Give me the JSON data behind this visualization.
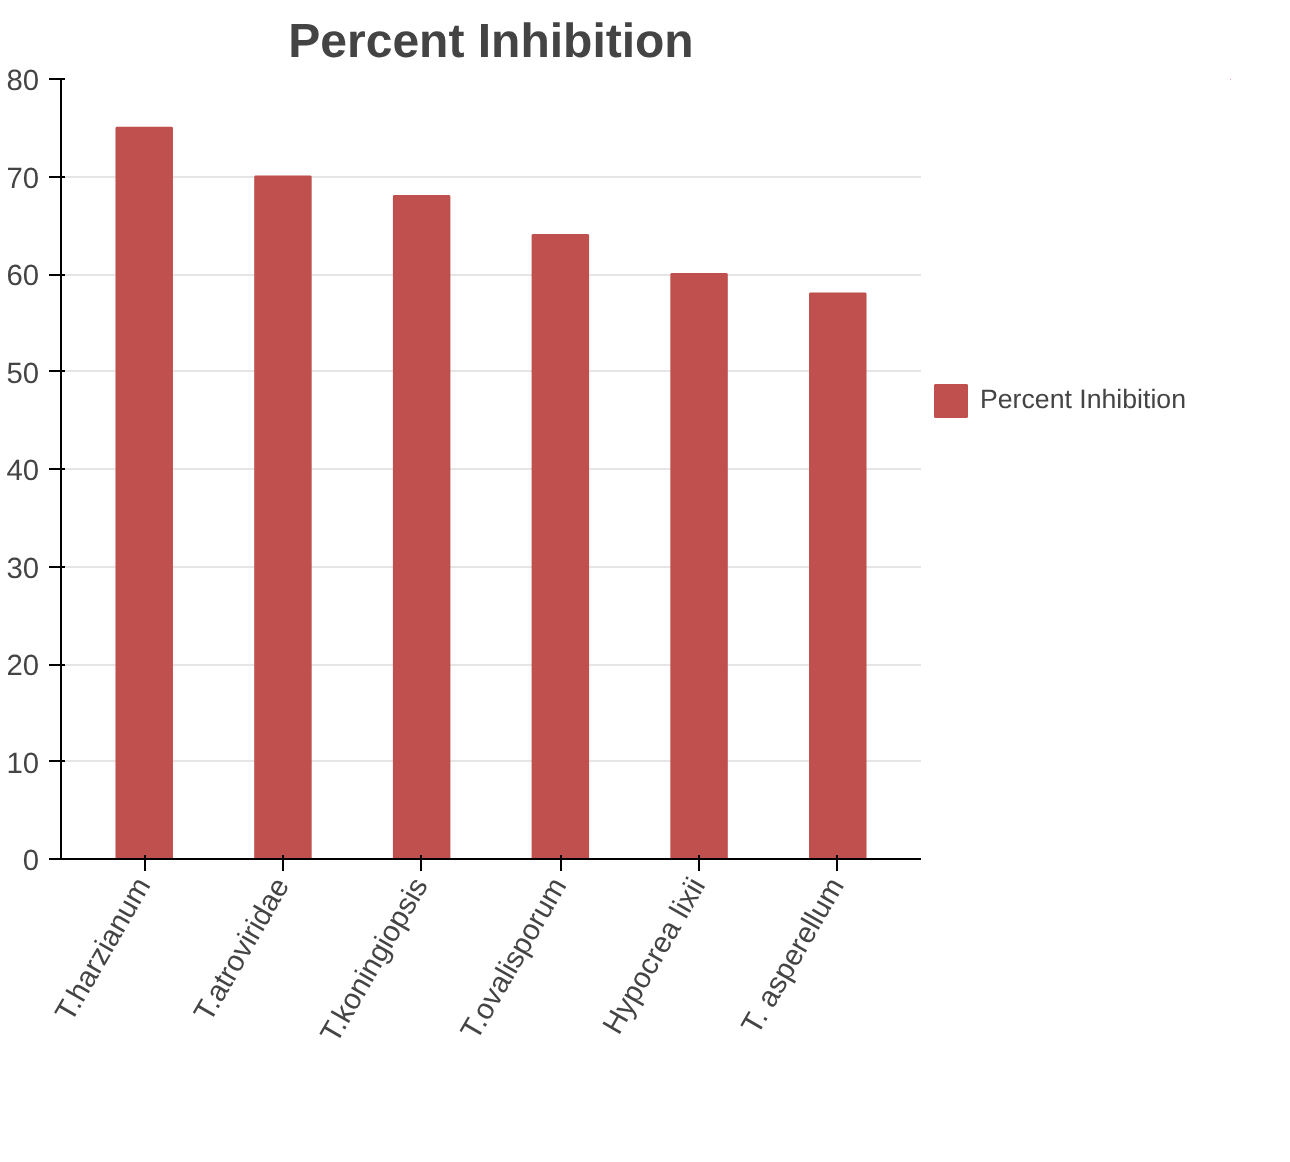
{
  "chart_data": {
    "type": "bar",
    "title": "Percent Inhibition",
    "categories": [
      "T.harzianum",
      "T.atroviridae",
      "T.koningiopsis",
      "T.ovalisporum",
      "Hypocrea lixii",
      "T. asperellum"
    ],
    "series": [
      {
        "name": "Percent Inhibition",
        "color": "#c0504d",
        "values": [
          75,
          70,
          68,
          64,
          60,
          58
        ]
      }
    ],
    "ylim": [
      0,
      80
    ],
    "yticks": [
      0,
      10,
      20,
      30,
      40,
      50,
      60,
      70,
      80
    ],
    "grid": "y",
    "legend": "right"
  }
}
